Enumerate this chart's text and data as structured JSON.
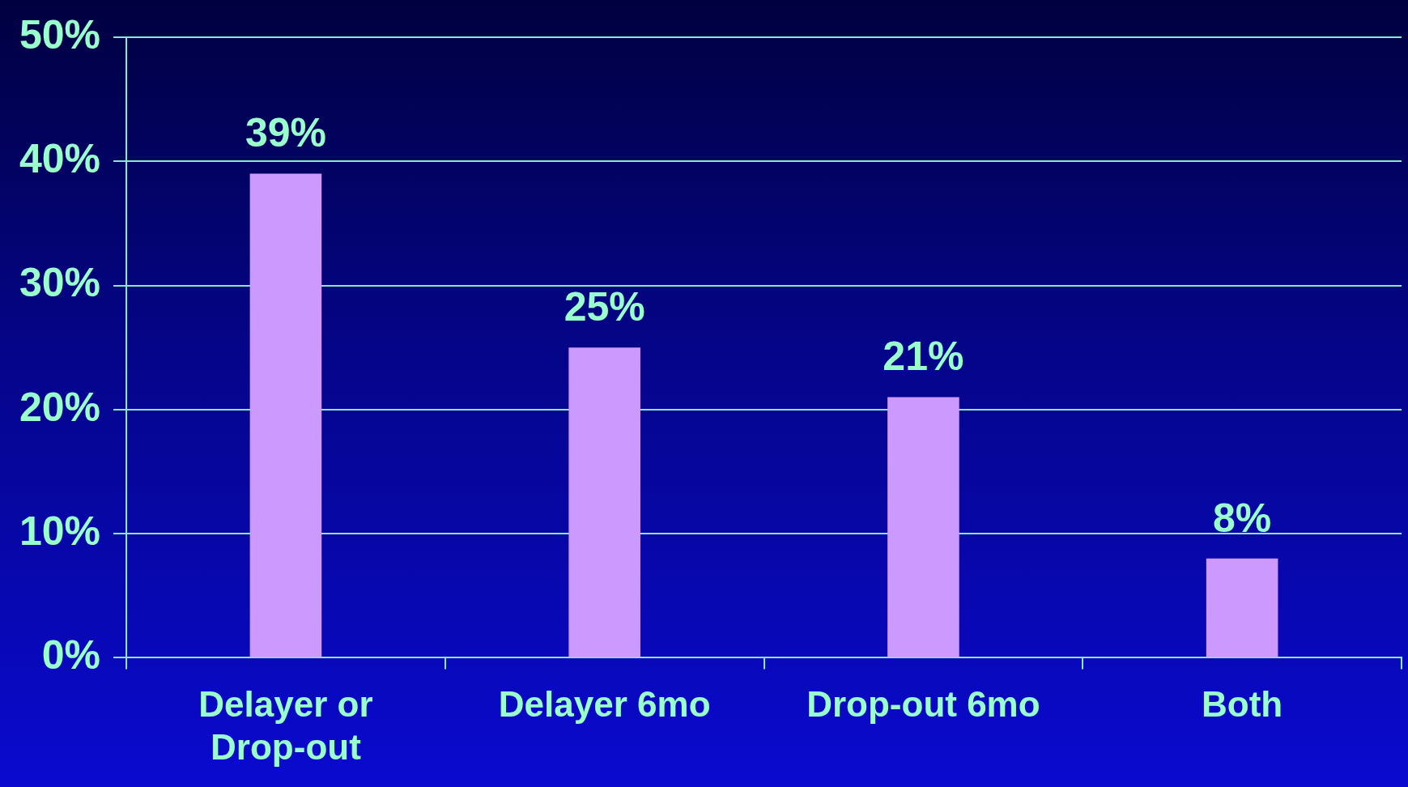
{
  "chart_data": {
    "type": "bar",
    "categories": [
      "Delayer or Drop-out",
      "Delayer 6mo",
      "Drop-out 6mo",
      "Both"
    ],
    "values": [
      39,
      25,
      21,
      8
    ],
    "value_labels": [
      "39%",
      "25%",
      "21%",
      "8%"
    ],
    "color": "#cc99ff",
    "ylim": [
      0,
      50
    ],
    "yticks": [
      {
        "value": 0,
        "label": "0%"
      },
      {
        "value": 10,
        "label": "10%"
      },
      {
        "value": 20,
        "label": "20%"
      },
      {
        "value": 30,
        "label": "30%"
      },
      {
        "value": 40,
        "label": "40%"
      },
      {
        "value": 50,
        "label": "50%"
      }
    ],
    "grid": "y"
  }
}
